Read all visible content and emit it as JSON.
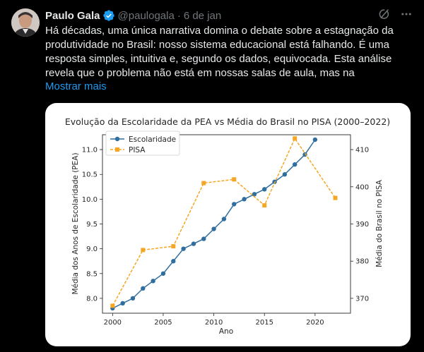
{
  "tweet": {
    "author_name": "Paulo Gala",
    "handle": "@paulogala",
    "separator": "·",
    "date": "6 de jan",
    "text_lines": [
      "Há décadas, uma única narrativa domina o debate sobre a estagnação da",
      "produtividade no Brasil: nosso sistema educacional está falhando. É uma",
      "resposta simples, intuitiva e, segundo os dados, equivocada. Esta análise",
      "revela que o problema não está em nossas salas de aula, mas na"
    ],
    "show_more": "Mostrar mais"
  },
  "colors": {
    "background": "#000000",
    "text": "#e7e9ea",
    "muted": "#71767b",
    "link": "#1d9bf0",
    "verified": "#1d9bf0",
    "series_blue": "#2f6e9f",
    "series_orange": "#f5a623"
  },
  "icons": {
    "verified": "verified-badge-icon",
    "grok": "grok-icon",
    "more": "more-options-icon"
  },
  "chart_data": {
    "type": "line",
    "title": "Evolução da Escolaridade da PEA vs Média do Brasil no PISA (2000–2022)",
    "xlabel": "Ano",
    "ylabel_left": "Média dos Anos de Escolaridade (PEA)",
    "ylabel_right": "Média do Brasil no PISA",
    "xlim": [
      1999,
      2023.5
    ],
    "xticks": [
      "2000",
      "2005",
      "2010",
      "2015",
      "2020"
    ],
    "ylim_left": [
      7.7,
      11.3
    ],
    "yticks_left": [
      "8.0",
      "8.5",
      "9.0",
      "9.5",
      "10.0",
      "10.5",
      "11.0"
    ],
    "ylim_right": [
      366,
      414
    ],
    "yticks_right": [
      "370",
      "380",
      "390",
      "400",
      "410"
    ],
    "legend_position": "top-left",
    "series": [
      {
        "name": "Escolaridade",
        "axis": "left",
        "style": "solid-circle",
        "x": [
          2000,
          2001,
          2002,
          2003,
          2004,
          2005,
          2006,
          2007,
          2008,
          2009,
          2010,
          2011,
          2012,
          2013,
          2014,
          2015,
          2016,
          2017,
          2018,
          2019,
          2020
        ],
        "y": [
          7.8,
          7.9,
          8.0,
          8.2,
          8.35,
          8.5,
          8.75,
          9.0,
          9.1,
          9.2,
          9.4,
          9.6,
          9.9,
          10.0,
          10.1,
          10.2,
          10.35,
          10.5,
          10.7,
          10.9,
          11.2
        ]
      },
      {
        "name": "PISA",
        "axis": "right",
        "style": "dashed-square",
        "x": [
          2000,
          2003,
          2006,
          2009,
          2012,
          2015,
          2018,
          2022
        ],
        "y": [
          368,
          383,
          384,
          401,
          402,
          395,
          413,
          397
        ]
      }
    ]
  }
}
